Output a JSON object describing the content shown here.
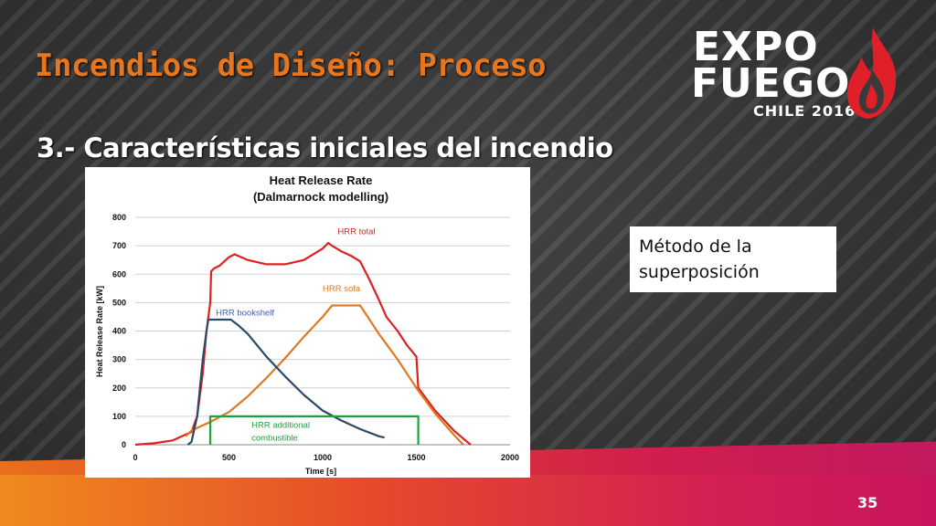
{
  "slide": {
    "title": "Incendios de Diseño: Proceso",
    "subtitle": "3.- Características iniciales del incendio",
    "note": "Método de la superposición",
    "page_number": "35"
  },
  "logo": {
    "line1": "EXPO",
    "line2": "FUEGO",
    "line3": "CHILE 2016"
  },
  "colors": {
    "title": "#e8761d",
    "hrr_total": "#e02020",
    "hrr_sofa": "#e07820",
    "hrr_bookshelf": "#2a4a6a",
    "hrr_additional": "#20a040",
    "bookshelf_label": "#4060b0"
  },
  "chart_data": {
    "type": "line",
    "title": "Heat Release Rate",
    "subtitle": "(Dalmarnock modelling)",
    "xlabel": "Time [s]",
    "ylabel": "Heat Release Rate [kW]",
    "xlim": [
      0,
      2000
    ],
    "ylim": [
      0,
      800
    ],
    "x_ticks": [
      "0",
      "500",
      "1000",
      "1500",
      "2000"
    ],
    "y_ticks": [
      "0",
      "100",
      "200",
      "300",
      "400",
      "500",
      "600",
      "700",
      "800"
    ],
    "grid": "horizontal",
    "series": [
      {
        "name": "HRR total",
        "color": "#e02020",
        "points": [
          [
            0,
            0
          ],
          [
            100,
            5
          ],
          [
            200,
            15
          ],
          [
            300,
            45
          ],
          [
            330,
            100
          ],
          [
            360,
            250
          ],
          [
            380,
            400
          ],
          [
            400,
            500
          ],
          [
            405,
            610
          ],
          [
            420,
            620
          ],
          [
            450,
            630
          ],
          [
            500,
            660
          ],
          [
            530,
            670
          ],
          [
            600,
            650
          ],
          [
            700,
            635
          ],
          [
            800,
            635
          ],
          [
            900,
            650
          ],
          [
            1000,
            690
          ],
          [
            1030,
            710
          ],
          [
            1050,
            700
          ],
          [
            1100,
            680
          ],
          [
            1150,
            665
          ],
          [
            1200,
            645
          ],
          [
            1250,
            580
          ],
          [
            1300,
            510
          ],
          [
            1320,
            480
          ],
          [
            1340,
            450
          ],
          [
            1400,
            400
          ],
          [
            1450,
            350
          ],
          [
            1500,
            310
          ],
          [
            1510,
            200
          ],
          [
            1600,
            120
          ],
          [
            1700,
            50
          ],
          [
            1780,
            5
          ],
          [
            1790,
            0
          ]
        ]
      },
      {
        "name": "HRR sofa",
        "color": "#e07820",
        "points": [
          [
            270,
            30
          ],
          [
            300,
            50
          ],
          [
            400,
            80
          ],
          [
            500,
            115
          ],
          [
            600,
            170
          ],
          [
            700,
            235
          ],
          [
            800,
            305
          ],
          [
            900,
            380
          ],
          [
            1000,
            450
          ],
          [
            1050,
            490
          ],
          [
            1200,
            490
          ],
          [
            1250,
            440
          ],
          [
            1300,
            390
          ],
          [
            1400,
            300
          ],
          [
            1500,
            200
          ],
          [
            1600,
            110
          ],
          [
            1700,
            35
          ],
          [
            1750,
            0
          ]
        ]
      },
      {
        "name": "HRR bookshelf",
        "color": "#2a4a6a",
        "points": [
          [
            280,
            0
          ],
          [
            300,
            10
          ],
          [
            330,
            100
          ],
          [
            360,
            300
          ],
          [
            380,
            400
          ],
          [
            390,
            440
          ],
          [
            510,
            440
          ],
          [
            550,
            420
          ],
          [
            600,
            390
          ],
          [
            700,
            310
          ],
          [
            800,
            240
          ],
          [
            900,
            175
          ],
          [
            1000,
            120
          ],
          [
            1100,
            85
          ],
          [
            1200,
            55
          ],
          [
            1300,
            30
          ],
          [
            1330,
            25
          ]
        ]
      },
      {
        "name": "HRR additional combustible",
        "color": "#20a040",
        "points": [
          [
            400,
            0
          ],
          [
            400,
            100
          ],
          [
            1510,
            100
          ],
          [
            1510,
            0
          ]
        ]
      }
    ],
    "annotations": [
      {
        "text": "HRR total",
        "x": 1080,
        "y": 740
      },
      {
        "text": "HRR sofa",
        "x": 1000,
        "y": 540
      },
      {
        "text": "HRR bookshelf",
        "x": 430,
        "y": 455
      },
      {
        "text": "HRR additional",
        "x": 620,
        "y": 60
      },
      {
        "text": "combustible",
        "x": 620,
        "y": 15
      }
    ]
  }
}
